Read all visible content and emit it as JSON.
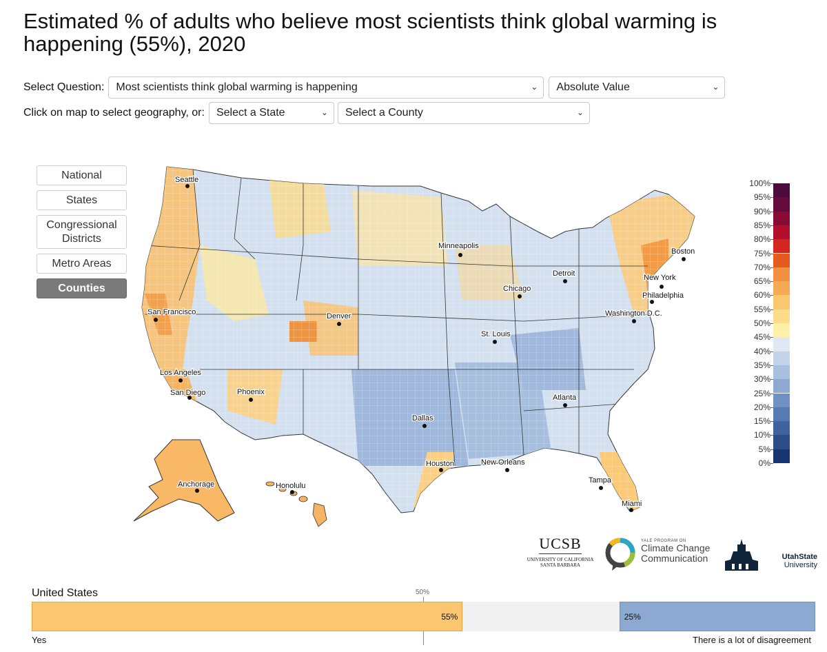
{
  "title": "Estimated % of adults who believe most scientists think global warming is happening (55%), 2020",
  "controls": {
    "select_question_label": "Select Question:",
    "question_value": "Most scientists think global warming is happening",
    "value_type": "Absolute Value",
    "geo_label": "Click on map to select geography, or:",
    "state_placeholder": "Select a State",
    "county_placeholder": "Select a County"
  },
  "geography_buttons": [
    {
      "label": "National",
      "active": false
    },
    {
      "label": "States",
      "active": false
    },
    {
      "label": "Congressional Districts",
      "active": false
    },
    {
      "label": "Metro Areas",
      "active": false
    },
    {
      "label": "Counties",
      "active": true
    }
  ],
  "map": {
    "cities": [
      {
        "name": "Seattle"
      },
      {
        "name": "San Francisco"
      },
      {
        "name": "Los Angeles"
      },
      {
        "name": "San Diego"
      },
      {
        "name": "Phoenix"
      },
      {
        "name": "Denver"
      },
      {
        "name": "Minneapolis"
      },
      {
        "name": "Chicago"
      },
      {
        "name": "Detroit"
      },
      {
        "name": "St. Louis"
      },
      {
        "name": "Dallas"
      },
      {
        "name": "Houston"
      },
      {
        "name": "New Orleans"
      },
      {
        "name": "Atlanta"
      },
      {
        "name": "Tampa"
      },
      {
        "name": "Miami"
      },
      {
        "name": "Washington D.C."
      },
      {
        "name": "Philadelphia"
      },
      {
        "name": "New York"
      },
      {
        "name": "Boston"
      },
      {
        "name": "Anchorage"
      },
      {
        "name": "Honolulu"
      }
    ]
  },
  "legend": {
    "labels": [
      "100%",
      "95%",
      "90%",
      "85%",
      "80%",
      "75%",
      "70%",
      "65%",
      "60%",
      "55%",
      "50%",
      "45%",
      "40%",
      "35%",
      "30%",
      "25%",
      "20%",
      "15%",
      "10%",
      "5%",
      "0%"
    ],
    "colors": [
      "#4a0b3f",
      "#650a3c",
      "#8a0a36",
      "#b30e2c",
      "#d2261f",
      "#e45a1f",
      "#f09040",
      "#f5aa55",
      "#fac66f",
      "#fddc8b",
      "#fdf0a8",
      "#dfe8f3",
      "#c3d4ea",
      "#a8c0df",
      "#8ca9d2",
      "#7091c4",
      "#587ab3",
      "#40629e",
      "#2b4b89",
      "#183573",
      "#0a1f55"
    ]
  },
  "logos": {
    "ucsb": "UCSB",
    "ucsb_sub1": "UNIVERSITY OF CALIFORNIA",
    "ucsb_sub2": "SANTA BARBARA",
    "yale_small": "YALE PROGRAM ON",
    "yale_1": "Climate Change",
    "yale_2": "Communication",
    "usu_1": "UtahState",
    "usu_2": "University"
  },
  "summary": {
    "geography": "United States",
    "midpoint_label": "50%",
    "yes_value": 55,
    "yes_label_value": "55%",
    "disagree_value": 25,
    "disagree_label_value": "25%",
    "yes_label": "Yes",
    "disagree_label": "There is a lot of disagreement",
    "colors": {
      "yes": "#fac66f",
      "disagree": "#8ca9d2",
      "neutral": "#f1f1f1"
    }
  }
}
